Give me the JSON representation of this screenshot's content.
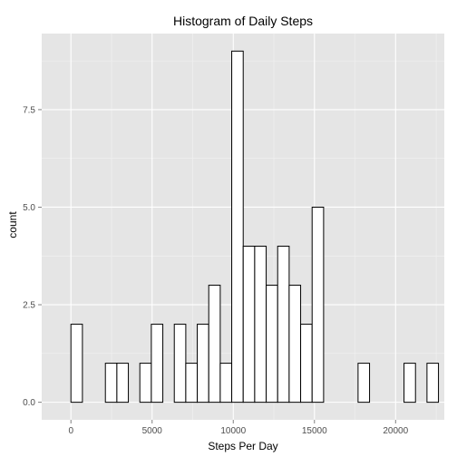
{
  "chart_data": {
    "type": "bar",
    "title": "Histogram of Daily Steps",
    "xlabel": "Steps Per Day",
    "ylabel": "count",
    "x_ticks": [
      0,
      5000,
      10000,
      15000,
      20000
    ],
    "y_ticks": [
      0.0,
      2.5,
      5.0,
      7.5
    ],
    "y_tick_labels": [
      "0.0",
      "2.5",
      "5.0",
      "7.5"
    ],
    "xlim": [
      -1800,
      23000
    ],
    "ylim": [
      -0.45,
      9.45
    ],
    "bin_start": -707.5,
    "bin_width": 707.5,
    "values": [
      0,
      2,
      0,
      0,
      1,
      1,
      0,
      1,
      2,
      0,
      2,
      1,
      2,
      3,
      1,
      9,
      4,
      4,
      3,
      4,
      3,
      2,
      5,
      0,
      0,
      0,
      1,
      0,
      0,
      0,
      1,
      0,
      1,
      0
    ],
    "grid": true,
    "colors": {
      "panel_background": "#e5e5e5",
      "grid_major": "#ffffff",
      "grid_minor": "#f2f2f2",
      "bar_fill": "#ffffff",
      "bar_stroke": "#000000"
    }
  }
}
